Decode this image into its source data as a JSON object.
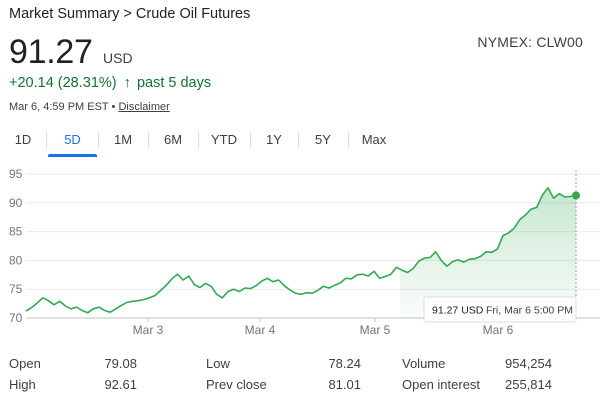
{
  "breadcrumb": {
    "parent": "Market Summary",
    "separator": ">",
    "current": "Crude Oil Futures"
  },
  "ticker": "NYMEX: CLW00",
  "price": {
    "value": "91.27",
    "currency": "USD"
  },
  "change": {
    "text": "+20.14 (28.31%)",
    "arrow": "↑",
    "period": "past 5 days",
    "color": "#137333"
  },
  "timestamp": {
    "text": "Mar 6, 4:59 PM EST",
    "separator": "•",
    "disclaimer": "Disclaimer"
  },
  "tabs": [
    {
      "label": "1D",
      "active": false
    },
    {
      "label": "5D",
      "active": true
    },
    {
      "label": "1M",
      "active": false
    },
    {
      "label": "6M",
      "active": false
    },
    {
      "label": "YTD",
      "active": false
    },
    {
      "label": "1Y",
      "active": false
    },
    {
      "label": "5Y",
      "active": false
    },
    {
      "label": "Max",
      "active": false
    }
  ],
  "colors": {
    "accent": "#1a73e8",
    "line": "#34a853"
  },
  "chart_data": {
    "type": "area",
    "ylim": [
      70,
      95
    ],
    "y_ticks": [
      70,
      75,
      80,
      85,
      90,
      95
    ],
    "x_tick_labels": [
      "Mar 3",
      "Mar 4",
      "Mar 5",
      "Mar 6"
    ],
    "grid": true,
    "series": [
      {
        "values": [
          71.2,
          71.8,
          72.6,
          73.5,
          73.0,
          72.3,
          72.9,
          72.1,
          71.6,
          71.9,
          71.3,
          70.9,
          71.6,
          71.9,
          71.3,
          71.0,
          71.6,
          72.2,
          72.7,
          72.9,
          73.0,
          73.2,
          73.5,
          73.9,
          74.8,
          75.7,
          76.8,
          77.6,
          76.6,
          77.3,
          75.8,
          75.3,
          76.0,
          75.5,
          74.1,
          73.5,
          74.6,
          75.0,
          74.6,
          75.2,
          75.1,
          75.6,
          76.4,
          76.9,
          76.3,
          76.6,
          75.6,
          74.9,
          74.3,
          74.1,
          74.4,
          74.3,
          74.8,
          75.5,
          75.2,
          75.7,
          76.1,
          76.9,
          76.8,
          77.5,
          77.6,
          77.3,
          78.1,
          76.9,
          77.2,
          77.6,
          78.8,
          78.3,
          77.9,
          78.6,
          79.9,
          80.4,
          80.5,
          81.5,
          80.0,
          79.0,
          79.8,
          80.1,
          79.7,
          80.2,
          80.3,
          80.7,
          81.5,
          81.4,
          82.0,
          84.3,
          84.8,
          85.6,
          87.1,
          87.9,
          88.9,
          89.2,
          91.3,
          92.6,
          90.8,
          91.6,
          91.0,
          91.1,
          91.27
        ],
        "color": "#34a853"
      }
    ],
    "tooltip": {
      "value": "91.27 USD",
      "date": "Fri, Mar 6 5:00 PM"
    }
  },
  "stats": [
    {
      "label": "Open",
      "value": "79.08"
    },
    {
      "label": "High",
      "value": "92.61"
    },
    {
      "label": "Low",
      "value": "78.24"
    },
    {
      "label": "Prev close",
      "value": "81.01"
    },
    {
      "label": "Volume",
      "value": "954,254"
    },
    {
      "label": "Open interest",
      "value": "255,814"
    }
  ]
}
